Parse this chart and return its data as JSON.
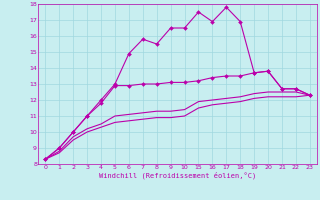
{
  "xlabel": "Windchill (Refroidissement éolien,°C)",
  "background_color": "#c8eef0",
  "grid_color": "#a0d8df",
  "line_color": "#bb00aa",
  "ylim": [
    8,
    18
  ],
  "yticks": [
    8,
    9,
    10,
    11,
    12,
    13,
    14,
    15,
    16,
    17,
    18
  ],
  "xtick_labels": [
    "0",
    "1",
    "2",
    "3",
    "4",
    "5",
    "6",
    "7",
    "8",
    "9",
    "10",
    "15",
    "16",
    "17",
    "18",
    "19",
    "20",
    "21",
    "22",
    "23"
  ],
  "curve1_y": [
    8.3,
    9.0,
    10.0,
    11.0,
    12.0,
    13.0,
    14.9,
    15.8,
    15.5,
    16.5,
    16.5,
    17.5,
    16.9,
    17.8,
    16.9,
    13.7,
    13.8,
    12.7,
    12.7,
    12.3
  ],
  "curve2_y": [
    8.3,
    9.0,
    10.0,
    11.0,
    11.8,
    12.9,
    12.9,
    13.0,
    13.0,
    13.1,
    13.1,
    13.2,
    13.4,
    13.5,
    13.5,
    13.7,
    13.8,
    12.7,
    12.7,
    12.3
  ],
  "curve3_y": [
    8.3,
    8.8,
    9.7,
    10.2,
    10.5,
    11.0,
    11.1,
    11.2,
    11.3,
    11.3,
    11.4,
    11.9,
    12.0,
    12.1,
    12.2,
    12.4,
    12.5,
    12.5,
    12.5,
    12.3
  ],
  "curve4_y": [
    8.3,
    8.7,
    9.5,
    10.0,
    10.3,
    10.6,
    10.7,
    10.8,
    10.9,
    10.9,
    11.0,
    11.5,
    11.7,
    11.8,
    11.9,
    12.1,
    12.2,
    12.2,
    12.2,
    12.3
  ]
}
